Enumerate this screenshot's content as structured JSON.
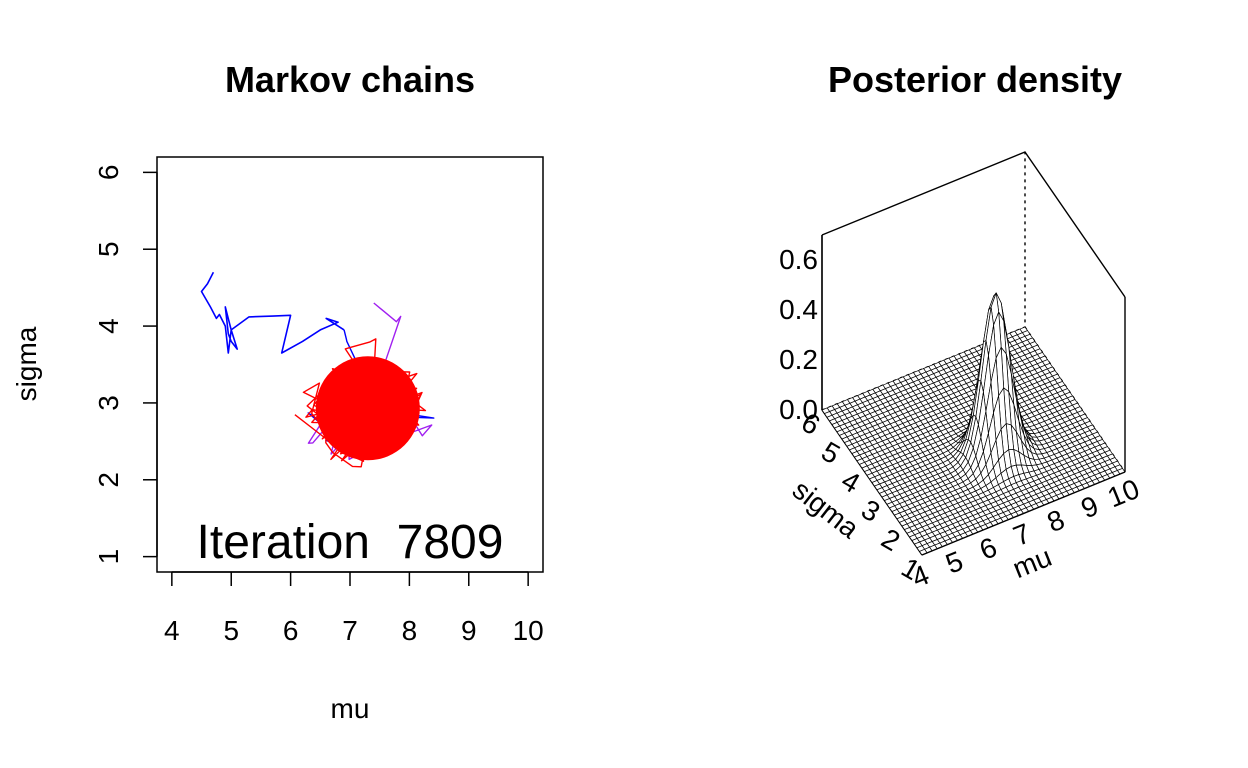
{
  "chart_data": [
    {
      "type": "line",
      "title": "Markov chains",
      "xlabel": "mu",
      "ylabel": "sigma",
      "xlim": [
        3.75,
        10.25
      ],
      "ylim": [
        0.8,
        6.2
      ],
      "xticks": [
        "4",
        "5",
        "6",
        "7",
        "8",
        "9",
        "10"
      ],
      "yticks": [
        "1",
        "2",
        "3",
        "4",
        "5",
        "6"
      ],
      "annotation": "Iteration  7809",
      "colors": {
        "chain_1": "#0000ff",
        "chain_2": "#a020f0",
        "chain_3": "#ff0000"
      },
      "chain_start_path": {
        "x": [
          4.7,
          4.6,
          4.5,
          4.65,
          4.75,
          4.8,
          4.9,
          4.95,
          5.0,
          4.9,
          4.95,
          5.0,
          5.1,
          5.0,
          5.3,
          5.7,
          6.0,
          5.85,
          6.2,
          6.5,
          6.8,
          6.6,
          6.9
        ],
        "y": [
          4.7,
          4.55,
          4.45,
          4.25,
          4.1,
          4.15,
          4.0,
          3.65,
          3.95,
          4.25,
          3.9,
          3.8,
          3.7,
          3.95,
          4.12,
          4.13,
          4.14,
          3.65,
          3.8,
          3.95,
          4.05,
          4.1,
          3.95
        ]
      },
      "cluster_center": [
        7.3,
        2.93
      ],
      "cluster_spread": [
        0.42,
        0.3
      ]
    },
    {
      "type": "surface",
      "title": "Posterior density",
      "xlabel": "mu",
      "ylabel": "sigma",
      "zticks": [
        "0.0",
        "0.2",
        "0.4",
        "0.6"
      ],
      "xticks": [
        "4",
        "5",
        "6",
        "7",
        "8",
        "9",
        "10"
      ],
      "yticks": [
        "1",
        "2",
        "3",
        "4",
        "5",
        "6"
      ],
      "xlim": [
        4,
        10
      ],
      "ylim": [
        1,
        6
      ],
      "zlim": [
        0,
        0.7
      ],
      "peak": {
        "mu": 7.3,
        "sigma": 2.9,
        "density": 0.65
      }
    }
  ]
}
